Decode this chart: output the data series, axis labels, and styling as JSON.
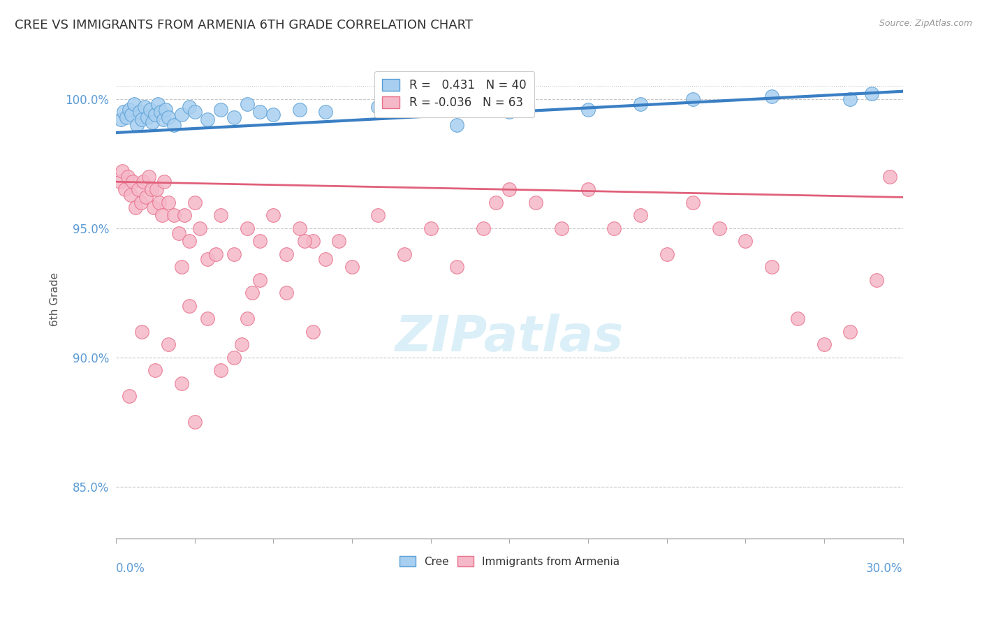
{
  "title": "CREE VS IMMIGRANTS FROM ARMENIA 6TH GRADE CORRELATION CHART",
  "source": "Source: ZipAtlas.com",
  "ylabel": "6th Grade",
  "xmin": 0.0,
  "xmax": 30.0,
  "ymin": 83.0,
  "ymax": 101.5,
  "yticks": [
    85.0,
    90.0,
    95.0,
    100.0
  ],
  "legend_r1": "R =   0.431   N = 40",
  "legend_r2": "R = -0.036   N = 63",
  "cree_color": "#a8cff0",
  "armenia_color": "#f5b8c8",
  "cree_edge_color": "#5a9fd4",
  "armenia_edge_color": "#e8708a",
  "cree_line_color": "#3a7fc4",
  "armenia_line_color": "#e0607a",
  "title_color": "#333333",
  "axis_color": "#5b9bd5",
  "watermark_color": "#d8eef8",
  "cree_points_x": [
    0.2,
    0.3,
    0.4,
    0.5,
    0.6,
    0.7,
    0.8,
    0.9,
    1.0,
    1.1,
    1.2,
    1.3,
    1.4,
    1.5,
    1.6,
    1.7,
    1.8,
    1.9,
    2.0,
    2.2,
    2.5,
    2.8,
    3.0,
    3.5,
    4.0,
    4.5,
    5.0,
    5.5,
    6.0,
    7.0,
    8.0,
    10.0,
    13.0,
    15.0,
    18.0,
    20.0,
    22.0,
    25.0,
    28.0,
    28.8
  ],
  "cree_points_y": [
    99.2,
    99.5,
    99.3,
    99.6,
    99.4,
    99.8,
    99.0,
    99.5,
    99.2,
    99.7,
    99.3,
    99.6,
    99.1,
    99.4,
    99.8,
    99.5,
    99.2,
    99.6,
    99.3,
    99.0,
    99.4,
    99.7,
    99.5,
    99.2,
    99.6,
    99.3,
    99.8,
    99.5,
    99.4,
    99.6,
    99.5,
    99.7,
    99.0,
    99.5,
    99.6,
    99.8,
    100.0,
    100.1,
    100.0,
    100.2
  ],
  "armenia_points_x": [
    0.15,
    0.25,
    0.35,
    0.45,
    0.55,
    0.65,
    0.75,
    0.85,
    0.95,
    1.05,
    1.15,
    1.25,
    1.35,
    1.45,
    1.55,
    1.65,
    1.75,
    1.85,
    2.0,
    2.2,
    2.4,
    2.6,
    2.8,
    3.0,
    3.2,
    3.5,
    4.0,
    4.5,
    5.0,
    5.5,
    6.0,
    6.5,
    7.0,
    7.5,
    8.0,
    8.5,
    9.0,
    10.0,
    11.0,
    12.0,
    13.0,
    14.0,
    14.5,
    15.0,
    16.0,
    17.0,
    18.0,
    19.0,
    20.0,
    21.0,
    22.0,
    23.0,
    24.0,
    25.0,
    26.0,
    27.0,
    28.0,
    29.0,
    29.5,
    2.5,
    3.8,
    5.2,
    7.2
  ],
  "armenia_points_y": [
    96.8,
    97.2,
    96.5,
    97.0,
    96.3,
    96.8,
    95.8,
    96.5,
    96.0,
    96.8,
    96.2,
    97.0,
    96.5,
    95.8,
    96.5,
    96.0,
    95.5,
    96.8,
    96.0,
    95.5,
    94.8,
    95.5,
    94.5,
    96.0,
    95.0,
    93.8,
    95.5,
    94.0,
    95.0,
    94.5,
    95.5,
    94.0,
    95.0,
    94.5,
    93.8,
    94.5,
    93.5,
    95.5,
    94.0,
    95.0,
    93.5,
    95.0,
    96.0,
    96.5,
    96.0,
    95.0,
    96.5,
    95.0,
    95.5,
    94.0,
    96.0,
    95.0,
    94.5,
    93.5,
    91.5,
    90.5,
    91.0,
    93.0,
    97.0,
    93.5,
    94.0,
    92.5,
    94.5
  ],
  "armenia_extra_x": [
    0.5,
    1.0,
    1.5,
    2.0,
    2.8,
    3.5,
    4.5,
    5.5,
    6.5,
    7.5,
    3.0,
    4.0,
    5.0,
    2.5,
    4.8
  ],
  "armenia_extra_y": [
    88.5,
    91.0,
    89.5,
    90.5,
    92.0,
    91.5,
    90.0,
    93.0,
    92.5,
    91.0,
    87.5,
    89.5,
    91.5,
    89.0,
    90.5
  ],
  "cree_trendline_x": [
    0.0,
    30.0
  ],
  "cree_trendline_y": [
    98.7,
    100.3
  ],
  "armenia_trendline_x": [
    0.0,
    30.0
  ],
  "armenia_trendline_y": [
    96.8,
    96.2
  ]
}
